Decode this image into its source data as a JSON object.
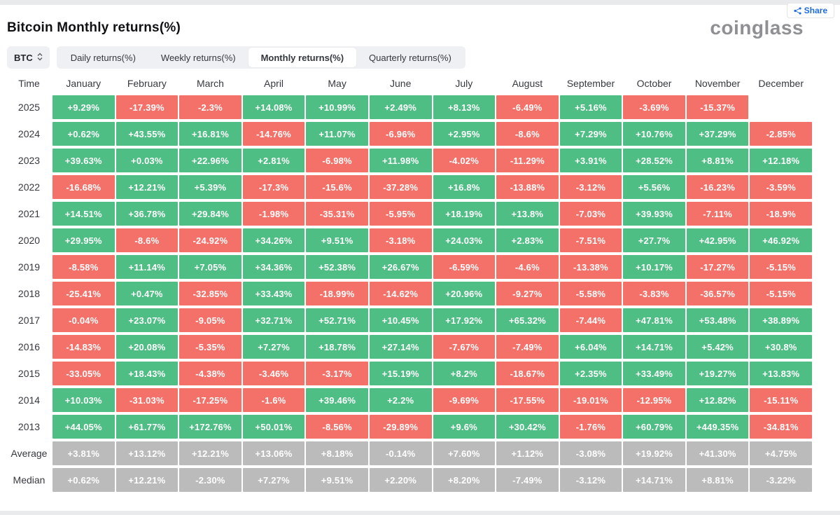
{
  "header": {
    "title": "Bitcoin Monthly returns(%)",
    "logo_text": "coinglass",
    "share_label": "Share"
  },
  "toolbar": {
    "symbol_selector": "BTC",
    "tabs": [
      {
        "label": "Daily returns(%)",
        "active": false
      },
      {
        "label": "Weekly returns(%)",
        "active": false
      },
      {
        "label": "Monthly returns(%)",
        "active": true
      },
      {
        "label": "Quarterly returns(%)",
        "active": false
      }
    ]
  },
  "chart_data": {
    "type": "heatmap",
    "title": "Bitcoin Monthly returns(%)",
    "row_header": "Time",
    "columns": [
      "January",
      "February",
      "March",
      "April",
      "May",
      "June",
      "July",
      "August",
      "September",
      "October",
      "November",
      "December"
    ],
    "rows": [
      {
        "label": "2025",
        "summary": false,
        "values": [
          "+9.29%",
          "-17.39%",
          "-2.3%",
          "+14.08%",
          "+10.99%",
          "+2.49%",
          "+8.13%",
          "-6.49%",
          "+5.16%",
          "-3.69%",
          "-15.37%",
          ""
        ]
      },
      {
        "label": "2024",
        "summary": false,
        "values": [
          "+0.62%",
          "+43.55%",
          "+16.81%",
          "-14.76%",
          "+11.07%",
          "-6.96%",
          "+2.95%",
          "-8.6%",
          "+7.29%",
          "+10.76%",
          "+37.29%",
          "-2.85%"
        ]
      },
      {
        "label": "2023",
        "summary": false,
        "values": [
          "+39.63%",
          "+0.03%",
          "+22.96%",
          "+2.81%",
          "-6.98%",
          "+11.98%",
          "-4.02%",
          "-11.29%",
          "+3.91%",
          "+28.52%",
          "+8.81%",
          "+12.18%"
        ]
      },
      {
        "label": "2022",
        "summary": false,
        "values": [
          "-16.68%",
          "+12.21%",
          "+5.39%",
          "-17.3%",
          "-15.6%",
          "-37.28%",
          "+16.8%",
          "-13.88%",
          "-3.12%",
          "+5.56%",
          "-16.23%",
          "-3.59%"
        ]
      },
      {
        "label": "2021",
        "summary": false,
        "values": [
          "+14.51%",
          "+36.78%",
          "+29.84%",
          "-1.98%",
          "-35.31%",
          "-5.95%",
          "+18.19%",
          "+13.8%",
          "-7.03%",
          "+39.93%",
          "-7.11%",
          "-18.9%"
        ]
      },
      {
        "label": "2020",
        "summary": false,
        "values": [
          "+29.95%",
          "-8.6%",
          "-24.92%",
          "+34.26%",
          "+9.51%",
          "-3.18%",
          "+24.03%",
          "+2.83%",
          "-7.51%",
          "+27.7%",
          "+42.95%",
          "+46.92%"
        ]
      },
      {
        "label": "2019",
        "summary": false,
        "values": [
          "-8.58%",
          "+11.14%",
          "+7.05%",
          "+34.36%",
          "+52.38%",
          "+26.67%",
          "-6.59%",
          "-4.6%",
          "-13.38%",
          "+10.17%",
          "-17.27%",
          "-5.15%"
        ]
      },
      {
        "label": "2018",
        "summary": false,
        "values": [
          "-25.41%",
          "+0.47%",
          "-32.85%",
          "+33.43%",
          "-18.99%",
          "-14.62%",
          "+20.96%",
          "-9.27%",
          "-5.58%",
          "-3.83%",
          "-36.57%",
          "-5.15%"
        ]
      },
      {
        "label": "2017",
        "summary": false,
        "values": [
          "-0.04%",
          "+23.07%",
          "-9.05%",
          "+32.71%",
          "+52.71%",
          "+10.45%",
          "+17.92%",
          "+65.32%",
          "-7.44%",
          "+47.81%",
          "+53.48%",
          "+38.89%"
        ]
      },
      {
        "label": "2016",
        "summary": false,
        "values": [
          "-14.83%",
          "+20.08%",
          "-5.35%",
          "+7.27%",
          "+18.78%",
          "+27.14%",
          "-7.67%",
          "-7.49%",
          "+6.04%",
          "+14.71%",
          "+5.42%",
          "+30.8%"
        ]
      },
      {
        "label": "2015",
        "summary": false,
        "values": [
          "-33.05%",
          "+18.43%",
          "-4.38%",
          "-3.46%",
          "-3.17%",
          "+15.19%",
          "+8.2%",
          "-18.67%",
          "+2.35%",
          "+33.49%",
          "+19.27%",
          "+13.83%"
        ]
      },
      {
        "label": "2014",
        "summary": false,
        "values": [
          "+10.03%",
          "-31.03%",
          "-17.25%",
          "-1.6%",
          "+39.46%",
          "+2.2%",
          "-9.69%",
          "-17.55%",
          "-19.01%",
          "-12.95%",
          "+12.82%",
          "-15.11%"
        ]
      },
      {
        "label": "2013",
        "summary": false,
        "values": [
          "+44.05%",
          "+61.77%",
          "+172.76%",
          "+50.01%",
          "-8.56%",
          "-29.89%",
          "+9.6%",
          "+30.42%",
          "-1.76%",
          "+60.79%",
          "+449.35%",
          "-34.81%"
        ]
      },
      {
        "label": "Average",
        "summary": true,
        "values": [
          "+3.81%",
          "+13.12%",
          "+12.21%",
          "+13.06%",
          "+8.18%",
          "-0.14%",
          "+7.60%",
          "+1.12%",
          "-3.08%",
          "+19.92%",
          "+41.30%",
          "+4.75%"
        ]
      },
      {
        "label": "Median",
        "summary": true,
        "values": [
          "+0.62%",
          "+12.21%",
          "-2.30%",
          "+7.27%",
          "+9.51%",
          "+2.20%",
          "+8.20%",
          "-7.49%",
          "-3.12%",
          "+14.71%",
          "+8.81%",
          "-3.22%"
        ]
      }
    ],
    "colors": {
      "positive": "#4fbe84",
      "negative": "#f4716a",
      "summary": "#bbbbbb",
      "accent": "#1f6be0"
    }
  }
}
